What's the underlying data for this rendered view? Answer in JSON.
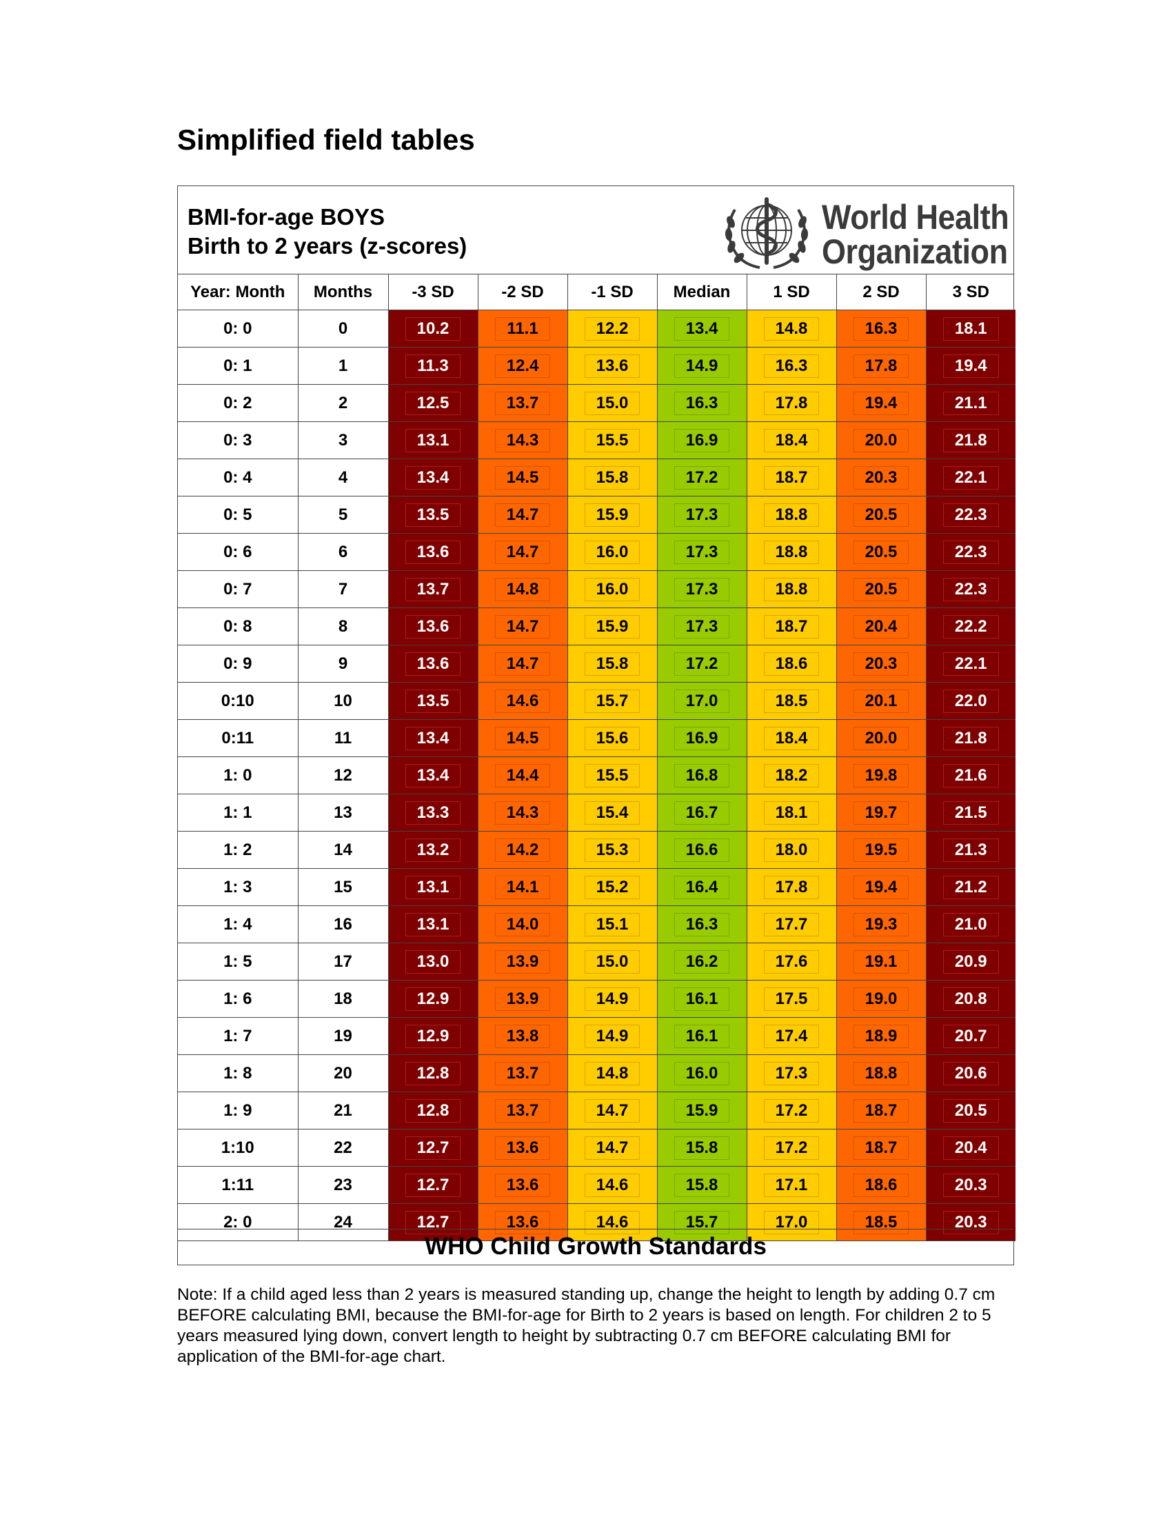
{
  "page_title": "Simplified field tables",
  "table": {
    "title_line1": "BMI-for-age  BOYS",
    "title_line2": "Birth to 2 years (z-scores)",
    "logo": {
      "name_line1": "World Health",
      "name_line2": "Organization",
      "icon": "who-emblem-icon"
    },
    "columns": [
      "Year: Month",
      "Months",
      "-3 SD",
      "-2 SD",
      "-1 SD",
      "Median",
      "1 SD",
      "2 SD",
      "3 SD"
    ],
    "rows": [
      [
        "0: 0",
        "0",
        "10.2",
        "11.1",
        "12.2",
        "13.4",
        "14.8",
        "16.3",
        "18.1"
      ],
      [
        "0: 1",
        "1",
        "11.3",
        "12.4",
        "13.6",
        "14.9",
        "16.3",
        "17.8",
        "19.4"
      ],
      [
        "0: 2",
        "2",
        "12.5",
        "13.7",
        "15.0",
        "16.3",
        "17.8",
        "19.4",
        "21.1"
      ],
      [
        "0: 3",
        "3",
        "13.1",
        "14.3",
        "15.5",
        "16.9",
        "18.4",
        "20.0",
        "21.8"
      ],
      [
        "0: 4",
        "4",
        "13.4",
        "14.5",
        "15.8",
        "17.2",
        "18.7",
        "20.3",
        "22.1"
      ],
      [
        "0: 5",
        "5",
        "13.5",
        "14.7",
        "15.9",
        "17.3",
        "18.8",
        "20.5",
        "22.3"
      ],
      [
        "0: 6",
        "6",
        "13.6",
        "14.7",
        "16.0",
        "17.3",
        "18.8",
        "20.5",
        "22.3"
      ],
      [
        "0: 7",
        "7",
        "13.7",
        "14.8",
        "16.0",
        "17.3",
        "18.8",
        "20.5",
        "22.3"
      ],
      [
        "0: 8",
        "8",
        "13.6",
        "14.7",
        "15.9",
        "17.3",
        "18.7",
        "20.4",
        "22.2"
      ],
      [
        "0: 9",
        "9",
        "13.6",
        "14.7",
        "15.8",
        "17.2",
        "18.6",
        "20.3",
        "22.1"
      ],
      [
        "0:10",
        "10",
        "13.5",
        "14.6",
        "15.7",
        "17.0",
        "18.5",
        "20.1",
        "22.0"
      ],
      [
        "0:11",
        "11",
        "13.4",
        "14.5",
        "15.6",
        "16.9",
        "18.4",
        "20.0",
        "21.8"
      ],
      [
        "1: 0",
        "12",
        "13.4",
        "14.4",
        "15.5",
        "16.8",
        "18.2",
        "19.8",
        "21.6"
      ],
      [
        "1: 1",
        "13",
        "13.3",
        "14.3",
        "15.4",
        "16.7",
        "18.1",
        "19.7",
        "21.5"
      ],
      [
        "1: 2",
        "14",
        "13.2",
        "14.2",
        "15.3",
        "16.6",
        "18.0",
        "19.5",
        "21.3"
      ],
      [
        "1: 3",
        "15",
        "13.1",
        "14.1",
        "15.2",
        "16.4",
        "17.8",
        "19.4",
        "21.2"
      ],
      [
        "1: 4",
        "16",
        "13.1",
        "14.0",
        "15.1",
        "16.3",
        "17.7",
        "19.3",
        "21.0"
      ],
      [
        "1: 5",
        "17",
        "13.0",
        "13.9",
        "15.0",
        "16.2",
        "17.6",
        "19.1",
        "20.9"
      ],
      [
        "1: 6",
        "18",
        "12.9",
        "13.9",
        "14.9",
        "16.1",
        "17.5",
        "19.0",
        "20.8"
      ],
      [
        "1: 7",
        "19",
        "12.9",
        "13.8",
        "14.9",
        "16.1",
        "17.4",
        "18.9",
        "20.7"
      ],
      [
        "1: 8",
        "20",
        "12.8",
        "13.7",
        "14.8",
        "16.0",
        "17.3",
        "18.8",
        "20.6"
      ],
      [
        "1: 9",
        "21",
        "12.8",
        "13.7",
        "14.7",
        "15.9",
        "17.2",
        "18.7",
        "20.5"
      ],
      [
        "1:10",
        "22",
        "12.7",
        "13.6",
        "14.7",
        "15.8",
        "17.2",
        "18.7",
        "20.4"
      ],
      [
        "1:11",
        "23",
        "12.7",
        "13.6",
        "14.6",
        "15.8",
        "17.1",
        "18.6",
        "20.3"
      ],
      [
        "2: 0",
        "24",
        "12.7",
        "13.6",
        "14.6",
        "15.7",
        "17.0",
        "18.5",
        "20.3"
      ]
    ],
    "column_colors": [
      "#ffffff",
      "#ffffff",
      "#7f0000",
      "#ff6600",
      "#ffcc00",
      "#99cc00",
      "#ffcc00",
      "#ff6600",
      "#7f0000"
    ],
    "footer": "WHO Child Growth Standards"
  },
  "note": "Note: If a child aged less than 2 years is measured standing up, change the height to length by adding 0.7 cm BEFORE calculating BMI, because the BMI-for-age for Birth to 2 years is based on length. For children 2 to 5 years measured lying down, convert length to height by subtracting 0.7 cm BEFORE calculating BMI for application of the BMI-for-age chart."
}
